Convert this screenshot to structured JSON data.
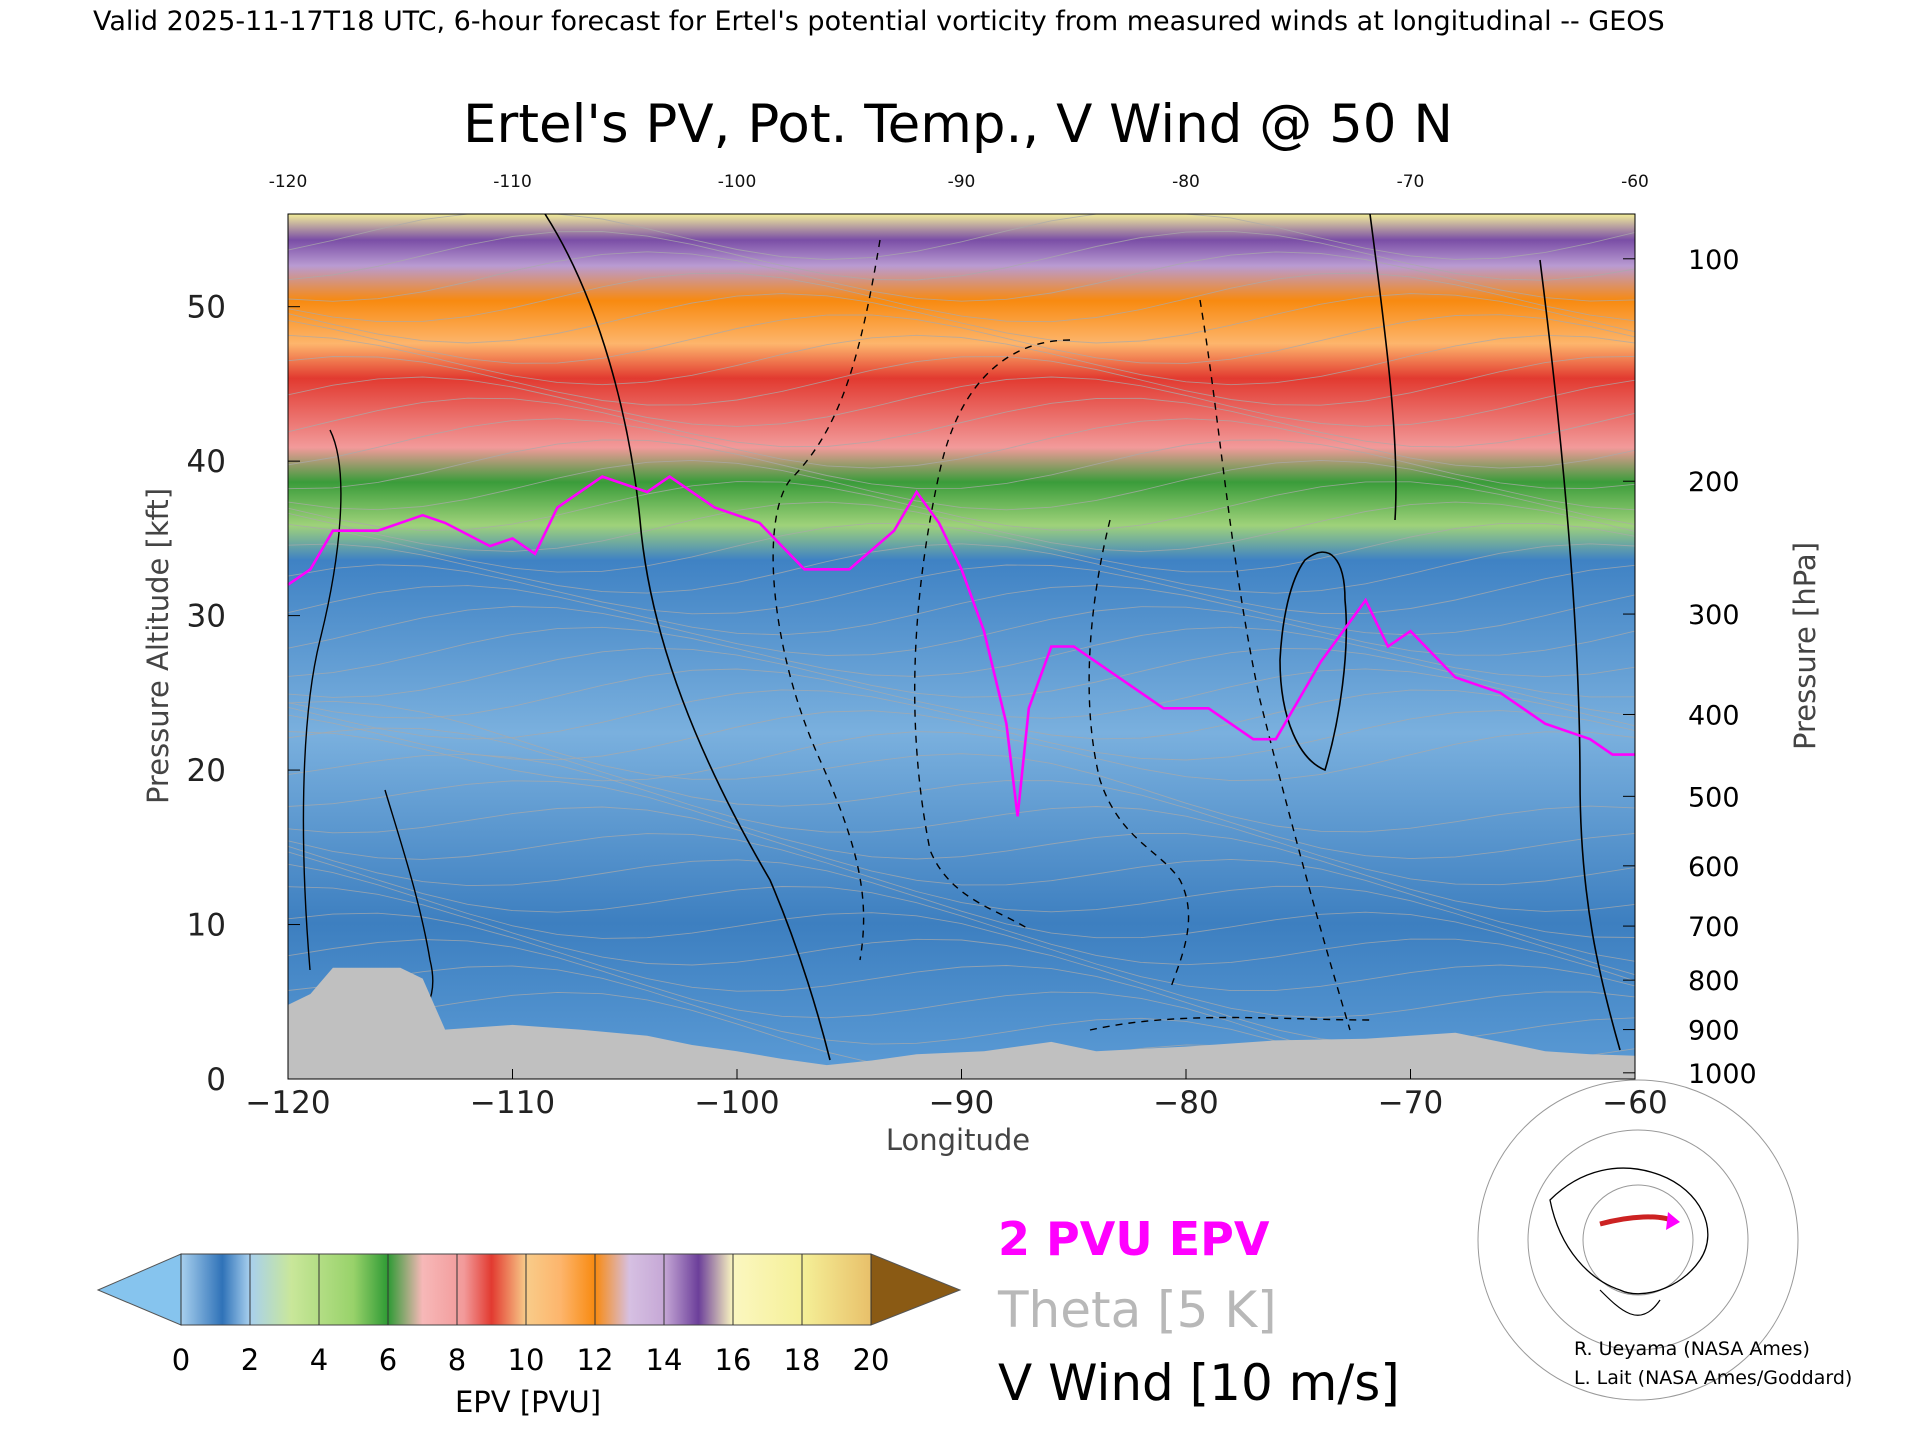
{
  "header": "Valid 2025-11-17T18 UTC, 6-hour forecast for Ertel's potential vorticity from measured winds at longitudinal -- GEOS",
  "chart_data": {
    "type": "heatmap",
    "title": "Ertel's PV, Pot. Temp., V Wind @ 50 N",
    "xlabel": "Longitude",
    "ylabel": "Pressure Altitude [kft]",
    "y2label": "Pressure [hPa]",
    "xlim": [
      -120,
      -60
    ],
    "ylim": [
      0,
      56
    ],
    "x_ticks": [
      -120,
      -110,
      -100,
      -90,
      -80,
      -70,
      -60
    ],
    "x_tick_labels": [
      "−120",
      "−110",
      "−100",
      "−90",
      "−80",
      "−70",
      "−60"
    ],
    "x_top_tick_labels": [
      "-120",
      "-110",
      "-100",
      "-90",
      "-80",
      "-70",
      "-60"
    ],
    "y_ticks": [
      0,
      10,
      20,
      30,
      40,
      50
    ],
    "y2_ticks": [
      {
        "label": "100",
        "kft": 53.1
      },
      {
        "label": "200",
        "kft": 38.7
      },
      {
        "label": "300",
        "kft": 30.1
      },
      {
        "label": "400",
        "kft": 23.6
      },
      {
        "label": "500",
        "kft": 18.3
      },
      {
        "label": "600",
        "kft": 13.8
      },
      {
        "label": "700",
        "kft": 9.9
      },
      {
        "label": "800",
        "kft": 6.4
      },
      {
        "label": "900",
        "kft": 3.2
      },
      {
        "label": "1000",
        "kft": 0.4
      }
    ],
    "pv_2_contour": [
      [
        -120,
        32
      ],
      [
        -119,
        33
      ],
      [
        -118,
        35.5
      ],
      [
        -116,
        35.5
      ],
      [
        -114,
        36.5
      ],
      [
        -113,
        36
      ],
      [
        -111,
        34.5
      ],
      [
        -110,
        35
      ],
      [
        -109,
        34
      ],
      [
        -108,
        37
      ],
      [
        -106,
        39
      ],
      [
        -104,
        38
      ],
      [
        -103,
        39
      ],
      [
        -101,
        37
      ],
      [
        -99,
        36
      ],
      [
        -97,
        33
      ],
      [
        -95,
        33
      ],
      [
        -93,
        35.5
      ],
      [
        -92,
        38
      ],
      [
        -91,
        36
      ],
      [
        -90,
        33
      ],
      [
        -89,
        29
      ],
      [
        -88,
        23
      ],
      [
        -87.5,
        17
      ],
      [
        -87,
        24
      ],
      [
        -86,
        28
      ],
      [
        -85,
        28
      ],
      [
        -83,
        26
      ],
      [
        -81,
        24
      ],
      [
        -79,
        24
      ],
      [
        -77,
        22
      ],
      [
        -76,
        22
      ],
      [
        -74,
        27
      ],
      [
        -72,
        31
      ],
      [
        -71,
        28
      ],
      [
        -70,
        29
      ],
      [
        -68,
        26
      ],
      [
        -66,
        25
      ],
      [
        -64,
        23
      ],
      [
        -62,
        22
      ],
      [
        -61,
        21
      ],
      [
        -60,
        21
      ]
    ],
    "colorbar": {
      "label": "EPV [PVU]",
      "ticks": [
        0,
        2,
        4,
        6,
        8,
        10,
        12,
        14,
        16,
        18,
        20
      ],
      "colors": [
        "#86c4ee",
        "#2f72b8",
        "#98d26a",
        "#2e9a34",
        "#f29a9a",
        "#e23a30",
        "#fdb56c",
        "#f88a10",
        "#c6a8d6",
        "#6c3f9a",
        "#f5f098",
        "#8a5a14"
      ]
    },
    "ground_color": "#c0c0c0",
    "legend": [
      {
        "label": "2 PVU EPV",
        "color": "#ff00ff"
      },
      {
        "label": "Theta [5 K]",
        "color": "#b8b8b8"
      },
      {
        "label": "V Wind [10 m/s]",
        "color": "#000000"
      }
    ]
  },
  "credits": [
    "R. Ueyama (NASA Ames)",
    "L. Lait (NASA Ames/Goddard)"
  ]
}
